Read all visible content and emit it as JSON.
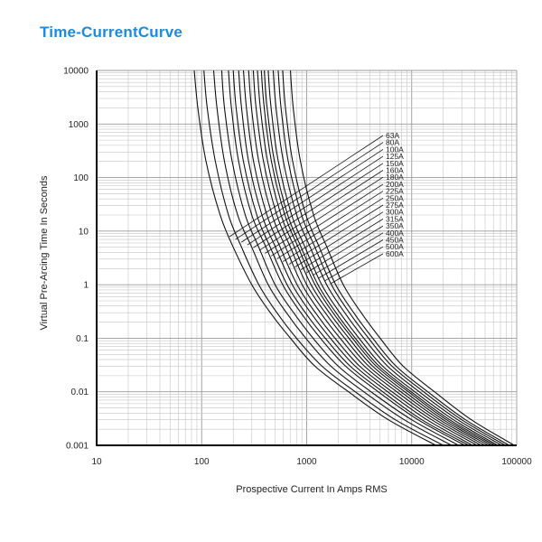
{
  "chart_data": {
    "type": "line",
    "title": "Time-CurrentCurve",
    "xlabel": "Prospective Current In Amps RMS",
    "ylabel": "Virtual Pre-Arcing Time In Seconds",
    "x_scale": "log",
    "y_scale": "log",
    "xlim": [
      10,
      100000
    ],
    "ylim": [
      0.001,
      10000
    ],
    "grid": true,
    "legend_placement": "center-right",
    "x_tick_labels": [
      "10",
      "100",
      "1000",
      "10000",
      "100000"
    ],
    "y_tick_labels": [
      "0.001",
      "0.01",
      "0.1",
      "1",
      "10",
      "100",
      "1000",
      "10000"
    ],
    "x_ticks": [
      10,
      100,
      1000,
      10000,
      100000
    ],
    "y_ticks": [
      0.001,
      0.01,
      0.1,
      1,
      10,
      100,
      1000,
      10000
    ],
    "series_colors": {
      "curve": "#111111",
      "grid": "#c4c4c4",
      "title": "#1a8be0"
    },
    "series": [
      {
        "name": "63A",
        "x": [
          85,
          92,
          110,
          150,
          200,
          300,
          450,
          700,
          1200,
          2500,
          6000,
          17000
        ],
        "y": [
          10000,
          2000,
          200,
          20,
          5,
          1,
          0.3,
          0.1,
          0.03,
          0.01,
          0.003,
          0.001
        ]
      },
      {
        "name": "80A",
        "x": [
          105,
          113,
          135,
          180,
          240,
          350,
          520,
          800,
          1400,
          2900,
          7000,
          20000
        ],
        "y": [
          10000,
          2000,
          200,
          20,
          5,
          1,
          0.3,
          0.1,
          0.03,
          0.01,
          0.003,
          0.001
        ]
      },
      {
        "name": "100A",
        "x": [
          130,
          140,
          165,
          220,
          300,
          430,
          640,
          980,
          1700,
          3500,
          8500,
          24000
        ],
        "y": [
          10000,
          2000,
          200,
          20,
          5,
          1,
          0.3,
          0.1,
          0.03,
          0.01,
          0.003,
          0.001
        ]
      },
      {
        "name": "125A",
        "x": [
          155,
          165,
          195,
          260,
          350,
          500,
          750,
          1150,
          2000,
          4100,
          10000,
          28000
        ],
        "y": [
          10000,
          2000,
          200,
          20,
          5,
          1,
          0.3,
          0.1,
          0.03,
          0.01,
          0.003,
          0.001
        ]
      },
      {
        "name": "150A",
        "x": [
          180,
          192,
          225,
          300,
          410,
          590,
          880,
          1350,
          2350,
          4800,
          11500,
          32000
        ],
        "y": [
          10000,
          2000,
          200,
          20,
          5,
          1,
          0.3,
          0.1,
          0.03,
          0.01,
          0.003,
          0.001
        ]
      },
      {
        "name": "160A",
        "x": [
          200,
          213,
          250,
          335,
          450,
          650,
          970,
          1500,
          2600,
          5300,
          12500,
          35000
        ],
        "y": [
          10000,
          2000,
          200,
          20,
          5,
          1,
          0.3,
          0.1,
          0.03,
          0.01,
          0.003,
          0.001
        ]
      },
      {
        "name": "180A",
        "x": [
          225,
          240,
          280,
          375,
          505,
          730,
          1090,
          1680,
          2900,
          5900,
          14000,
          38000
        ],
        "y": [
          10000,
          2000,
          200,
          20,
          5,
          1,
          0.3,
          0.1,
          0.03,
          0.01,
          0.003,
          0.001
        ]
      },
      {
        "name": "200A",
        "x": [
          250,
          267,
          312,
          418,
          560,
          810,
          1210,
          1860,
          3200,
          6500,
          15500,
          42000
        ],
        "y": [
          10000,
          2000,
          200,
          20,
          5,
          1,
          0.3,
          0.1,
          0.03,
          0.01,
          0.003,
          0.001
        ]
      },
      {
        "name": "225A",
        "x": [
          280,
          298,
          350,
          468,
          630,
          905,
          1350,
          2080,
          3550,
          7200,
          17000,
          46000
        ],
        "y": [
          10000,
          2000,
          200,
          20,
          5,
          1,
          0.3,
          0.1,
          0.03,
          0.01,
          0.003,
          0.001
        ]
      },
      {
        "name": "250A",
        "x": [
          310,
          330,
          388,
          520,
          700,
          1000,
          1500,
          2300,
          3900,
          7900,
          18500,
          50000
        ],
        "y": [
          10000,
          2000,
          200,
          20,
          5,
          1,
          0.3,
          0.1,
          0.03,
          0.01,
          0.003,
          0.001
        ]
      },
      {
        "name": "275A",
        "x": [
          340,
          362,
          425,
          570,
          765,
          1100,
          1640,
          2520,
          4250,
          8600,
          20000,
          54000
        ],
        "y": [
          10000,
          2000,
          200,
          20,
          5,
          1,
          0.3,
          0.1,
          0.03,
          0.01,
          0.003,
          0.001
        ]
      },
      {
        "name": "300A",
        "x": [
          370,
          394,
          462,
          620,
          830,
          1200,
          1780,
          2730,
          4600,
          9300,
          21500,
          58000
        ],
        "y": [
          10000,
          2000,
          200,
          20,
          5,
          1,
          0.3,
          0.1,
          0.03,
          0.01,
          0.003,
          0.001
        ]
      },
      {
        "name": "315A",
        "x": [
          395,
          420,
          493,
          660,
          885,
          1280,
          1900,
          2900,
          4900,
          9900,
          23000,
          62000
        ],
        "y": [
          10000,
          2000,
          200,
          20,
          5,
          1,
          0.3,
          0.1,
          0.03,
          0.01,
          0.003,
          0.001
        ]
      },
      {
        "name": "350A",
        "x": [
          430,
          458,
          537,
          720,
          965,
          1390,
          2070,
          3150,
          5300,
          10700,
          25000,
          66000
        ],
        "y": [
          10000,
          2000,
          200,
          20,
          5,
          1,
          0.3,
          0.1,
          0.03,
          0.01,
          0.003,
          0.001
        ]
      },
      {
        "name": "400A",
        "x": [
          480,
          511,
          600,
          805,
          1080,
          1550,
          2300,
          3500,
          5900,
          11800,
          27500,
          72000
        ],
        "y": [
          10000,
          2000,
          200,
          20,
          5,
          1,
          0.3,
          0.1,
          0.03,
          0.01,
          0.003,
          0.001
        ]
      },
      {
        "name": "450A",
        "x": [
          535,
          570,
          668,
          895,
          1200,
          1720,
          2550,
          3880,
          6500,
          13000,
          30000,
          78000
        ],
        "y": [
          10000,
          2000,
          200,
          20,
          5,
          1,
          0.3,
          0.1,
          0.03,
          0.01,
          0.003,
          0.001
        ]
      },
      {
        "name": "500A",
        "x": [
          590,
          628,
          736,
          985,
          1320,
          1890,
          2800,
          4250,
          7100,
          14200,
          32500,
          85000
        ],
        "y": [
          10000,
          2000,
          200,
          20,
          5,
          1,
          0.3,
          0.1,
          0.03,
          0.01,
          0.003,
          0.001
        ]
      },
      {
        "name": "600A",
        "x": [
          700,
          745,
          872,
          1165,
          1560,
          2230,
          3300,
          5000,
          8300,
          16500,
          37000,
          95000
        ],
        "y": [
          10000,
          2000,
          200,
          20,
          5,
          1,
          0.3,
          0.1,
          0.03,
          0.01,
          0.003,
          0.001
        ]
      }
    ]
  }
}
